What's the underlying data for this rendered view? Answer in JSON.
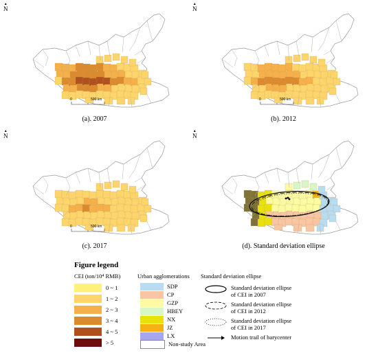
{
  "north_symbol": "N",
  "scale_labels": [
    "0",
    "500 km"
  ],
  "panels": [
    {
      "id": "a",
      "caption": "(a). 2007"
    },
    {
      "id": "b",
      "caption": "(b). 2012"
    },
    {
      "id": "c",
      "caption": "(c). 2017"
    },
    {
      "id": "d",
      "caption": "(d). Standard deviation ellipse"
    }
  ],
  "legend": {
    "title": "Figure legend",
    "cei_header": "CEI (ton/10⁴ RMB)",
    "cei_classes": [
      {
        "label": "0 ~ 1",
        "color": "#fff27a"
      },
      {
        "label": "1 ~ 2",
        "color": "#fdd56a"
      },
      {
        "label": "2 ~ 3",
        "color": "#f6b04a"
      },
      {
        "label": "3 ~ 4",
        "color": "#dc8a2e"
      },
      {
        "label": "4 ~ 5",
        "color": "#b0501c"
      },
      {
        "label": "> 5",
        "color": "#6e0d0b"
      }
    ],
    "ua_header": "Urban agglomerations",
    "urban_agglomerations": [
      {
        "label": "SDP",
        "color": "#b8dcf2"
      },
      {
        "label": "CP",
        "color": "#f8c6a2"
      },
      {
        "label": "GZP",
        "color": "#fdfba2"
      },
      {
        "label": "HBEY",
        "color": "#d8f7c6"
      },
      {
        "label": "NX",
        "color": "#e8e10c"
      },
      {
        "label": "JZ",
        "color": "#f7b016"
      },
      {
        "label": "LX",
        "color": "#a6a5f0"
      },
      {
        "label": "Non-study Area",
        "color": "#ffffff"
      }
    ],
    "sde_header": "Standard deviation ellipse",
    "sde_items": [
      {
        "line1": "Standard deviation ellipse",
        "line2": "of CEI in 2007",
        "style": "solid"
      },
      {
        "line1": "Standard deviation ellipse",
        "line2": "of CEI in 2012",
        "style": "dashed"
      },
      {
        "line1": "Standard deviation ellipse",
        "line2": "of CEI in 2017",
        "style": "dotted"
      },
      {
        "line1": "Motion trail of barycenter",
        "line2": "",
        "style": "arrow"
      }
    ]
  }
}
